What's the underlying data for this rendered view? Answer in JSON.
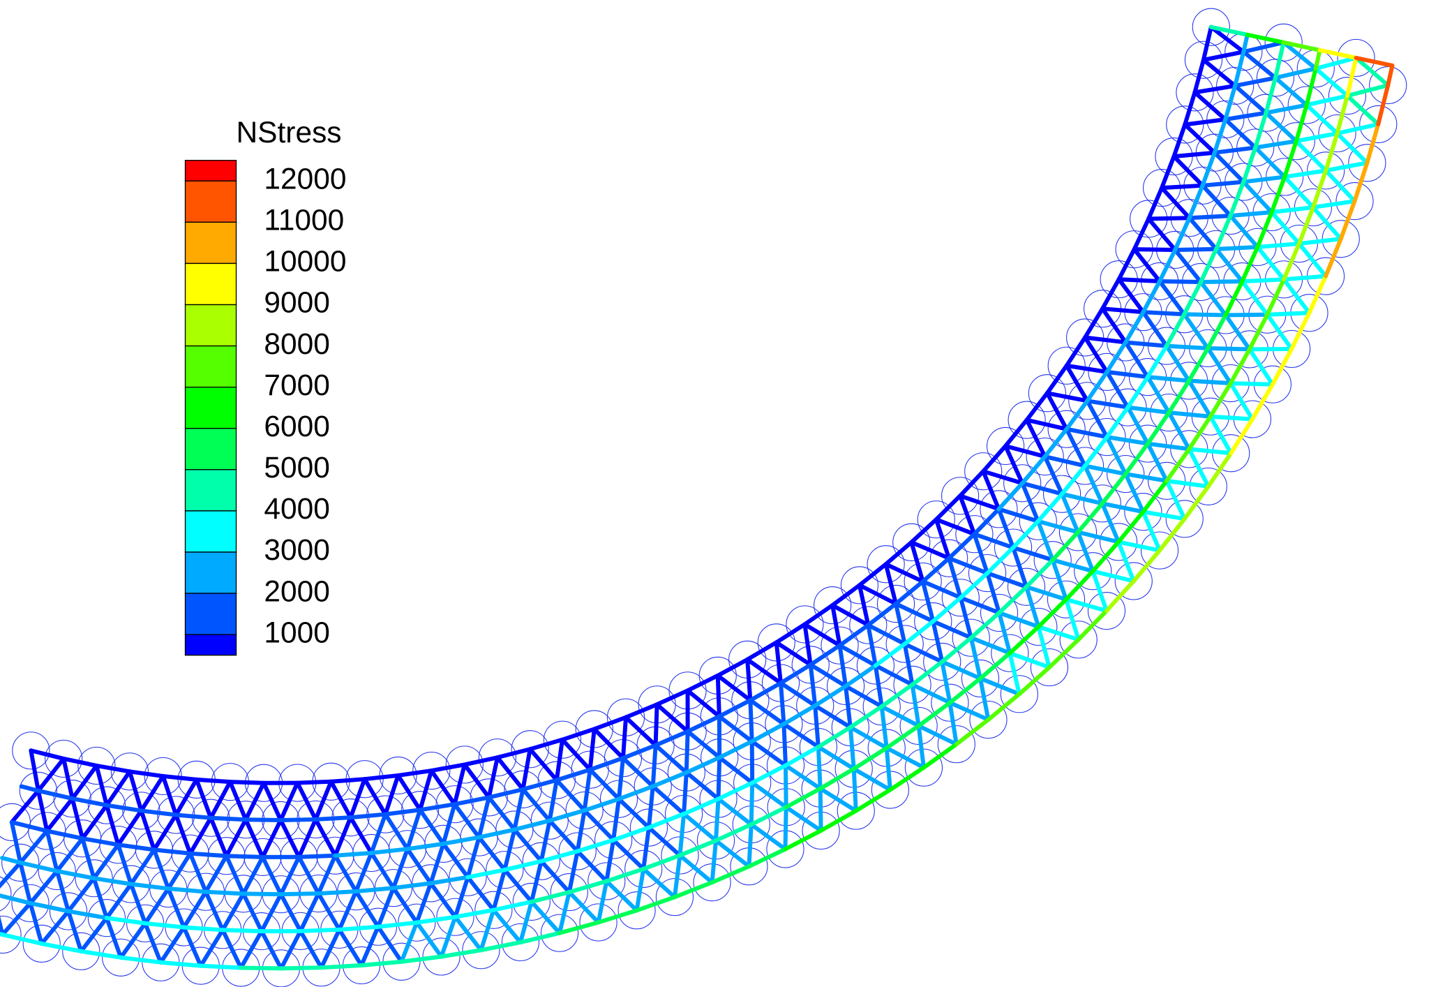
{
  "legend": {
    "title": "NStress",
    "ticks": [
      12000,
      11000,
      10000,
      9000,
      8000,
      7000,
      6000,
      5000,
      4000,
      3000,
      2000,
      1000
    ],
    "colors": [
      "#ff0000",
      "#ff5500",
      "#ffaa00",
      "#ffff00",
      "#aaff00",
      "#55ff00",
      "#00ff00",
      "#00ff55",
      "#00ffaa",
      "#00ffff",
      "#00aaff",
      "#0055ff",
      "#0000ff"
    ]
  }
}
